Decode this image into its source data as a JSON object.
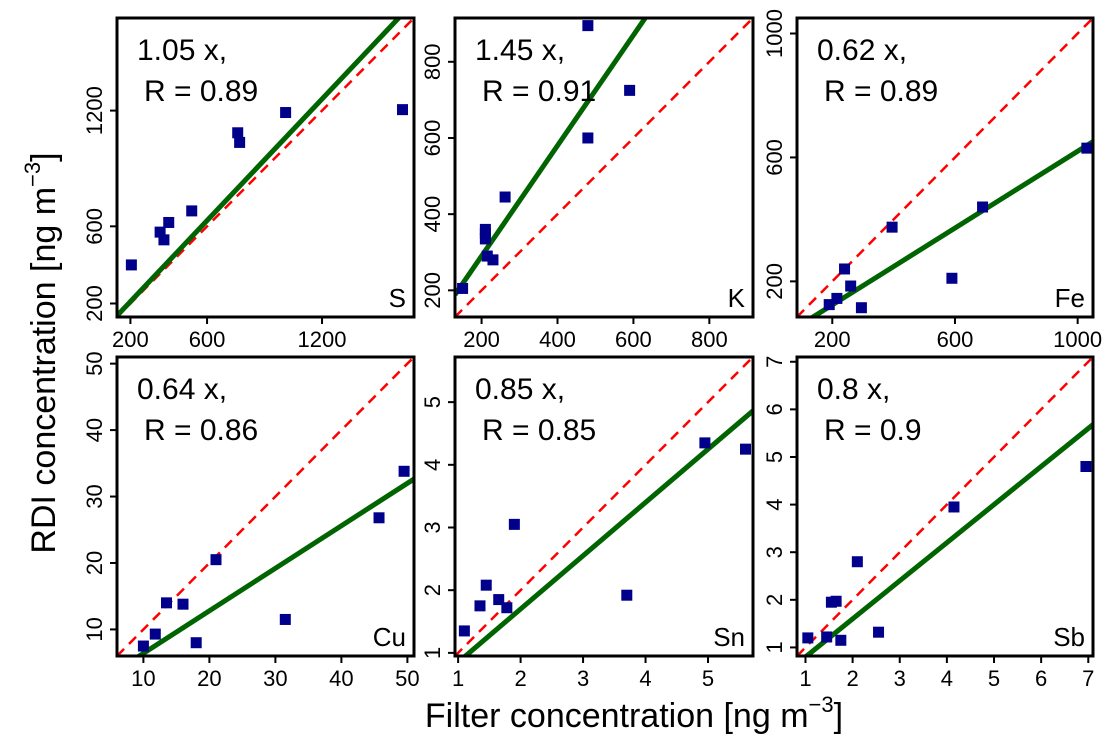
{
  "figure": {
    "xlabel_main": "Filter concentration [ng m",
    "xlabel_sup": "−3",
    "xlabel_end": "]",
    "ylabel_main": "RDI concentration [ng m",
    "ylabel_sup": "−3",
    "ylabel_end": "]"
  },
  "colors": {
    "points": "#00008B",
    "fit": "#006400",
    "identity": "#FF0000"
  },
  "chart_data": [
    {
      "type": "scatter",
      "element": "S",
      "slope_text": "1.05  x,",
      "r_text": "R =  0.89",
      "slope": 1.05,
      "xlim": [
        130,
        1680
      ],
      "ylim": [
        130,
        1680
      ],
      "xticks": [
        200,
        600,
        1200
      ],
      "yticks": [
        200,
        600,
        1200
      ],
      "points": [
        [
          205,
          400
        ],
        [
          355,
          570
        ],
        [
          375,
          530
        ],
        [
          400,
          620
        ],
        [
          520,
          680
        ],
        [
          760,
          1085
        ],
        [
          770,
          1035
        ],
        [
          1010,
          1190
        ],
        [
          1620,
          1205
        ]
      ]
    },
    {
      "type": "scatter",
      "element": "K",
      "slope_text": "1.45  x,",
      "r_text": "R =  0.91",
      "slope": 1.45,
      "xlim": [
        130,
        915
      ],
      "ylim": [
        130,
        915
      ],
      "xticks": [
        200,
        400,
        600,
        800
      ],
      "yticks": [
        200,
        400,
        600,
        800
      ],
      "points": [
        [
          150,
          205
        ],
        [
          210,
          335
        ],
        [
          210,
          350
        ],
        [
          210,
          360
        ],
        [
          215,
          290
        ],
        [
          230,
          280
        ],
        [
          262,
          445
        ],
        [
          480,
          600
        ],
        [
          480,
          895
        ],
        [
          590,
          725
        ]
      ]
    },
    {
      "type": "scatter",
      "element": "Fe",
      "slope_text": "0.62  x,",
      "r_text": "R =  0.89",
      "slope": 0.62,
      "xlim": [
        85,
        1050
      ],
      "ylim": [
        85,
        1050
      ],
      "xticks": [
        200,
        600,
        1000
      ],
      "yticks": [
        200,
        600,
        1000
      ],
      "points": [
        [
          190,
          125
        ],
        [
          215,
          145
        ],
        [
          240,
          240
        ],
        [
          260,
          185
        ],
        [
          295,
          115
        ],
        [
          395,
          375
        ],
        [
          590,
          210
        ],
        [
          690,
          440
        ],
        [
          1030,
          630
        ]
      ]
    },
    {
      "type": "scatter",
      "element": "Cu",
      "slope_text": "0.64  x,",
      "r_text": "R =  0.86",
      "slope": 0.64,
      "xlim": [
        6,
        51
      ],
      "ylim": [
        6,
        51
      ],
      "xticks": [
        10,
        20,
        30,
        40,
        50
      ],
      "yticks": [
        10,
        20,
        30,
        40,
        50
      ],
      "points": [
        [
          10,
          7.5
        ],
        [
          11.8,
          9.3
        ],
        [
          13.5,
          14
        ],
        [
          16,
          13.8
        ],
        [
          18,
          8
        ],
        [
          21,
          20.5
        ],
        [
          31.5,
          11.5
        ],
        [
          45.7,
          26.8
        ],
        [
          49.5,
          33.8
        ]
      ]
    },
    {
      "type": "scatter",
      "element": "Sn",
      "slope_text": "0.85  x,",
      "r_text": "R =  0.85",
      "slope": 0.85,
      "xlim": [
        0.95,
        5.72
      ],
      "ylim": [
        0.95,
        5.72
      ],
      "xticks": [
        1,
        2,
        3,
        4,
        5
      ],
      "yticks": [
        1,
        2,
        3,
        4,
        5
      ],
      "points": [
        [
          1.1,
          1.35
        ],
        [
          1.35,
          1.75
        ],
        [
          1.45,
          2.08
        ],
        [
          1.65,
          1.85
        ],
        [
          1.78,
          1.72
        ],
        [
          1.9,
          3.05
        ],
        [
          3.7,
          1.92
        ],
        [
          4.95,
          4.35
        ],
        [
          5.6,
          4.25
        ]
      ]
    },
    {
      "type": "scatter",
      "element": "Sb",
      "slope_text": "0.8  x,",
      "r_text": "R =  0.9",
      "slope": 0.8,
      "xlim": [
        0.82,
        7.1
      ],
      "ylim": [
        0.82,
        7.1
      ],
      "xticks": [
        1,
        2,
        3,
        4,
        5,
        6,
        7
      ],
      "yticks": [
        1,
        2,
        3,
        4,
        5,
        6,
        7
      ],
      "points": [
        [
          1.05,
          1.2
        ],
        [
          1.45,
          1.22
        ],
        [
          1.55,
          1.95
        ],
        [
          1.65,
          1.97
        ],
        [
          1.75,
          1.15
        ],
        [
          2.1,
          2.8
        ],
        [
          2.55,
          1.32
        ],
        [
          4.15,
          3.95
        ],
        [
          6.95,
          4.8
        ]
      ]
    }
  ]
}
